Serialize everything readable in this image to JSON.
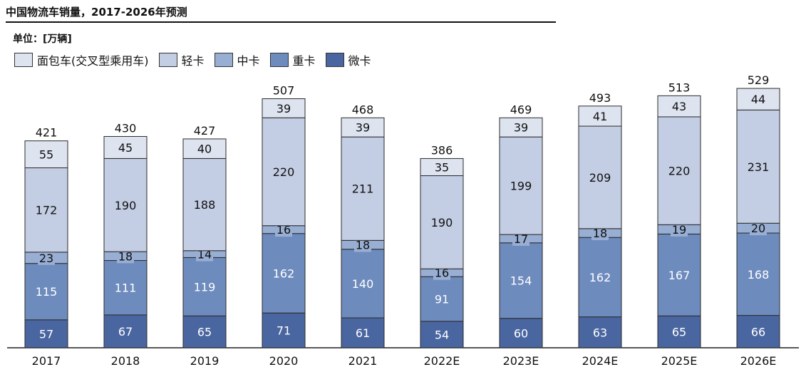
{
  "header": {
    "title": "中国物流车销量，2017-2026年预测",
    "unit": "单位：[万辆]"
  },
  "colors": {
    "mian_bao_che": "#dde3ef",
    "qing_ka": "#c3cde3",
    "zhong_ka": "#98aed3",
    "zhong_ka_heavy": "#6d8bbd",
    "wei_ka": "#4a66a0",
    "stroke": "#2b2b2b"
  },
  "chart_data": {
    "type": "bar",
    "stacked": true,
    "categories": [
      "2017",
      "2018",
      "2019",
      "2020",
      "2021",
      "2022E",
      "2023E",
      "2024E",
      "2025E",
      "2026E"
    ],
    "series": [
      {
        "name": "微卡",
        "values": [
          57,
          67,
          65,
          71,
          61,
          54,
          60,
          63,
          65,
          66
        ]
      },
      {
        "name": "重卡",
        "values": [
          115,
          111,
          119,
          162,
          140,
          91,
          154,
          162,
          167,
          168
        ]
      },
      {
        "name": "中卡",
        "values": [
          23,
          18,
          14,
          16,
          18,
          16,
          17,
          18,
          19,
          20
        ]
      },
      {
        "name": "轻卡",
        "values": [
          172,
          190,
          188,
          220,
          211,
          190,
          199,
          209,
          220,
          231
        ]
      },
      {
        "name": "面包车(交叉型乘用车)",
        "values": [
          55,
          45,
          40,
          39,
          39,
          35,
          39,
          41,
          43,
          44
        ]
      }
    ],
    "totals": [
      421,
      430,
      427,
      507,
      468,
      386,
      469,
      493,
      513,
      529
    ],
    "legend_order": [
      "面包车(交叉型乘用车)",
      "轻卡",
      "中卡",
      "重卡",
      "微卡"
    ],
    "ylim": [
      0,
      560
    ],
    "grid": false,
    "legend_position": "top-left"
  }
}
